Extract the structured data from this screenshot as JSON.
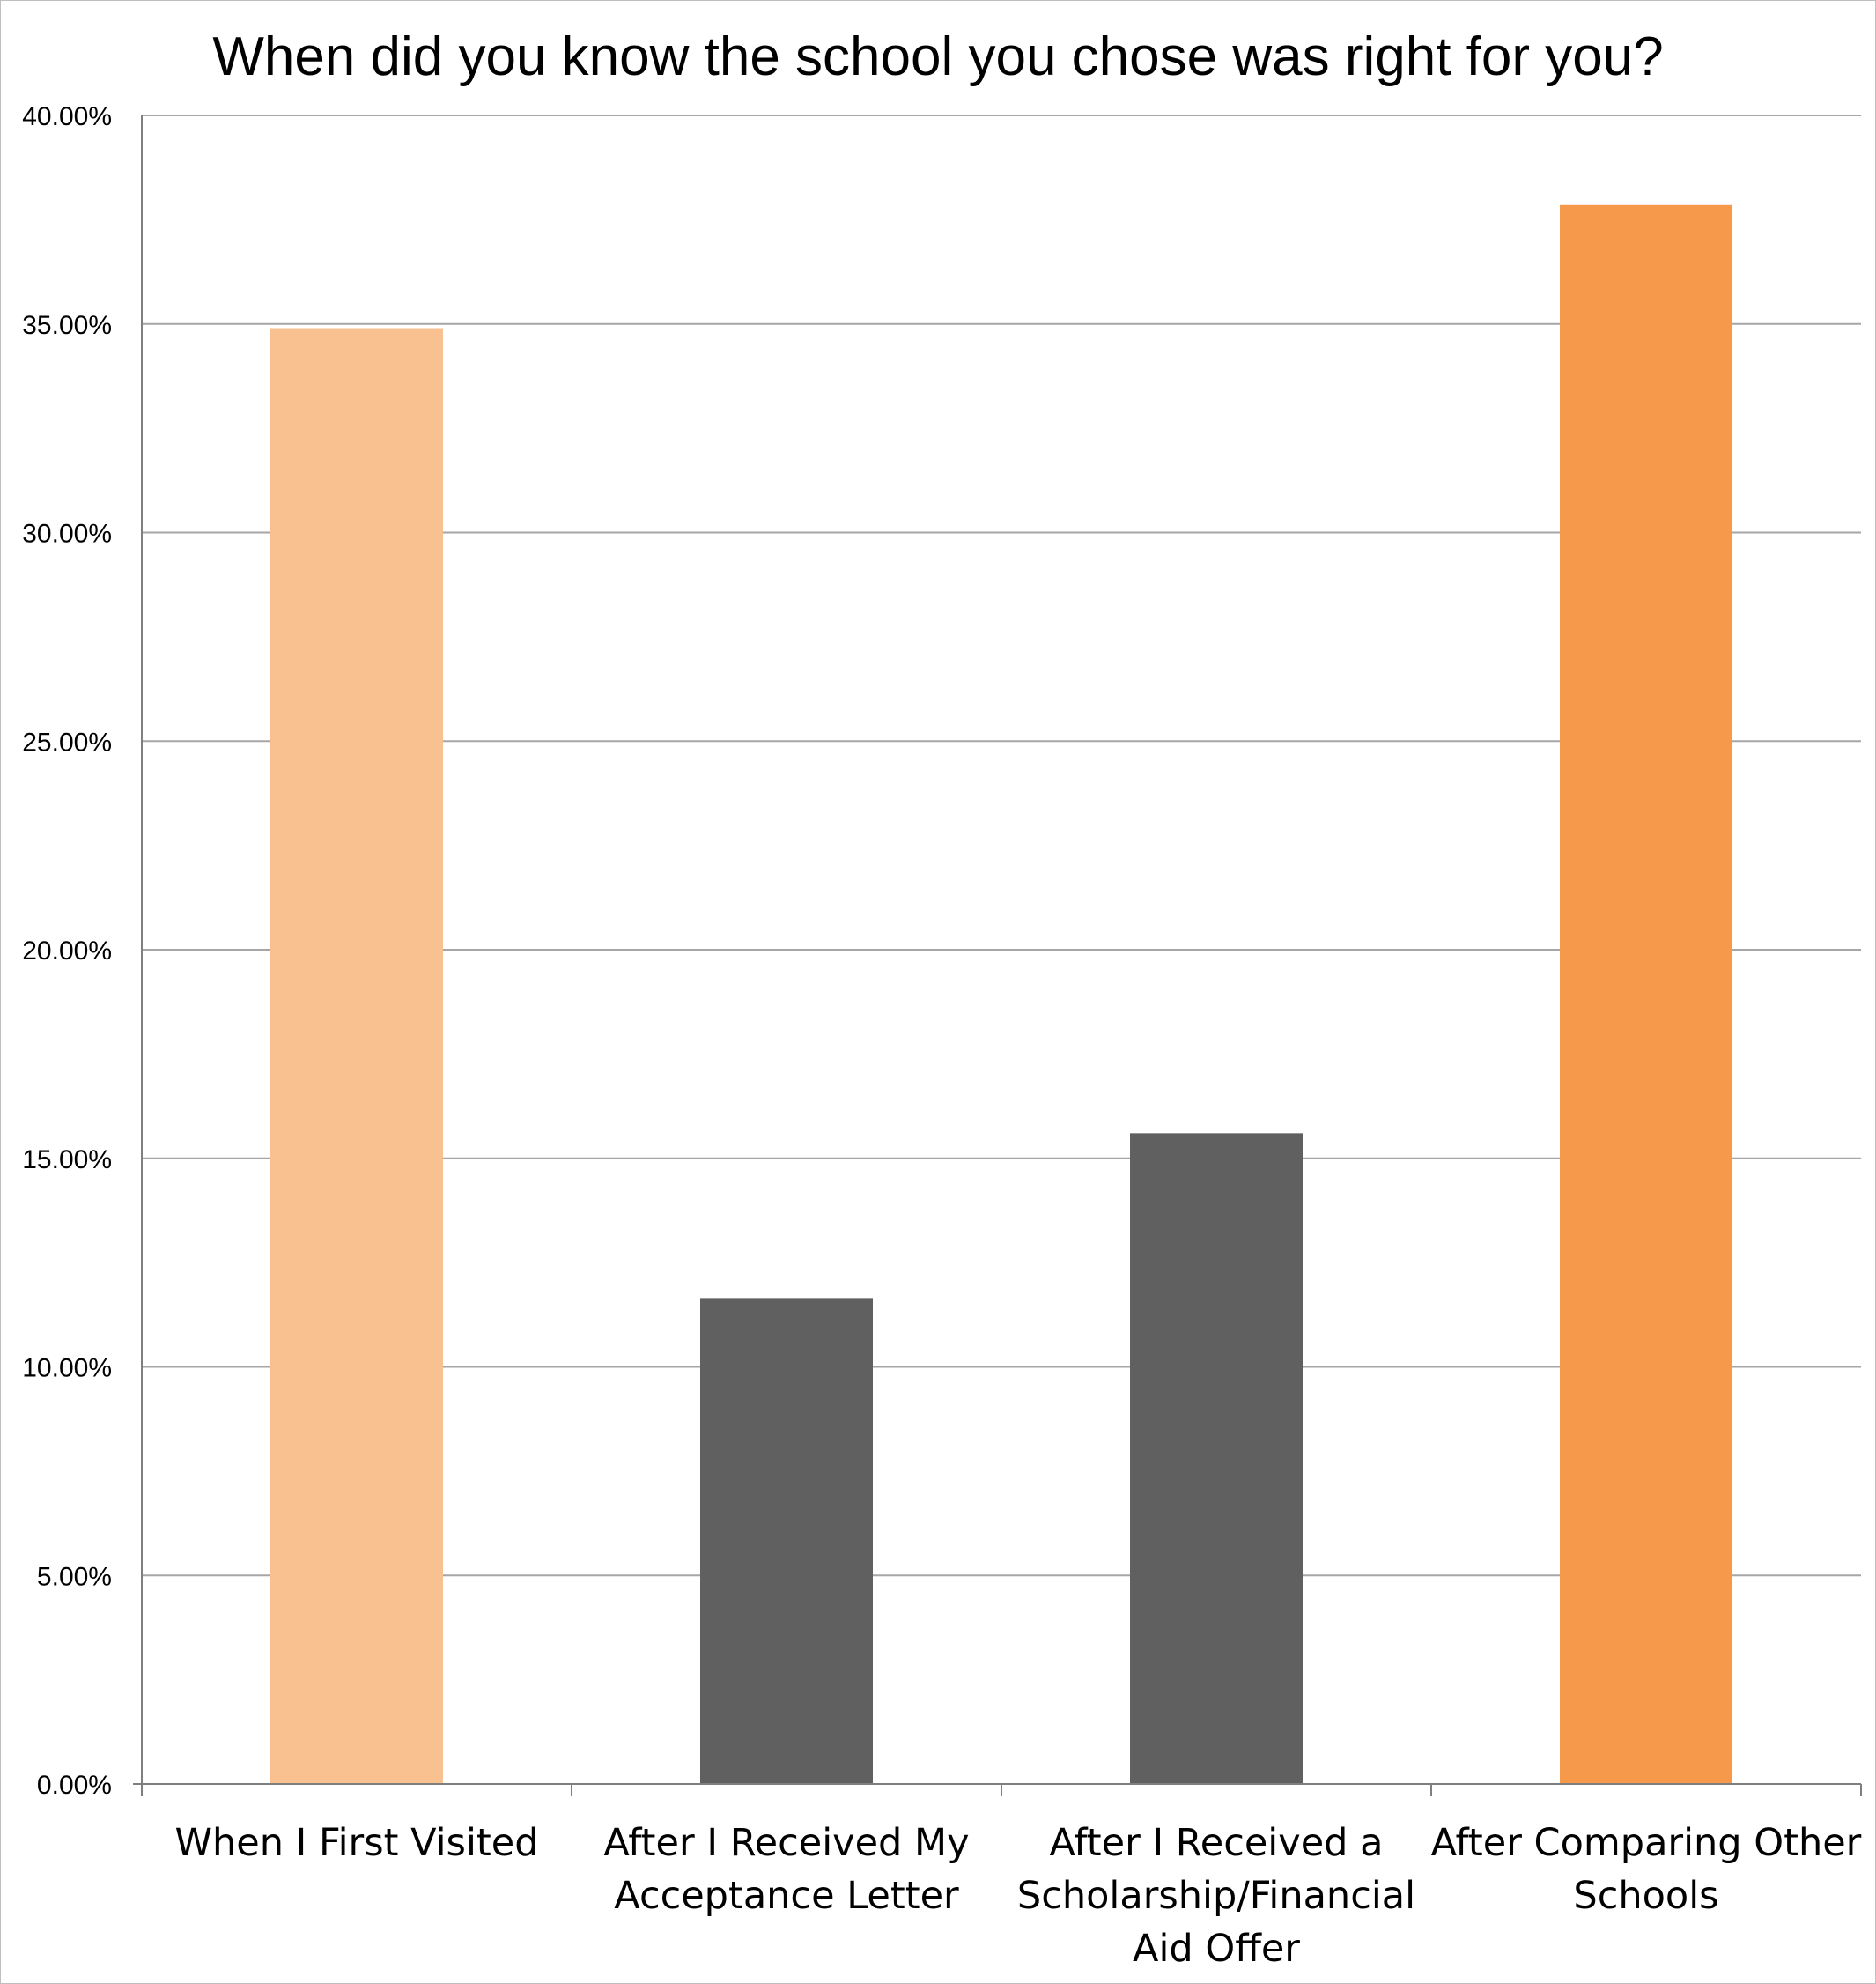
{
  "chart_data": {
    "type": "bar",
    "title": "When did you know the school you chose was right for you?",
    "categories": [
      "When I First Visited",
      "After I Received My Acceptance Letter",
      "After I Received a Scholarship/Financial Aid Offer",
      "After Comparing Other Schools"
    ],
    "category_lines": [
      [
        "When I First Visited"
      ],
      [
        "After I Received My",
        "Acceptance Letter"
      ],
      [
        "After I Received a",
        "Scholarship/Financial",
        "Aid Offer"
      ],
      [
        "After Comparing Other",
        "Schools"
      ]
    ],
    "values": [
      34.9,
      11.65,
      15.6,
      37.85
    ],
    "bar_colors": [
      "#f9c090",
      "#606060",
      "#606060",
      "#f6994a"
    ],
    "ylim": [
      0,
      40
    ],
    "yticks": [
      0,
      5,
      10,
      15,
      20,
      25,
      30,
      35,
      40
    ],
    "ytick_labels": [
      "0.00%",
      "5.00%",
      "10.00%",
      "15.00%",
      "20.00%",
      "25.00%",
      "30.00%",
      "35.00%",
      "40.00%"
    ],
    "xlabel": "",
    "ylabel": "",
    "grid": true,
    "legend": "none",
    "colors": {
      "gridline": "#a6a6a6",
      "axis": "#7f7f7f"
    }
  }
}
